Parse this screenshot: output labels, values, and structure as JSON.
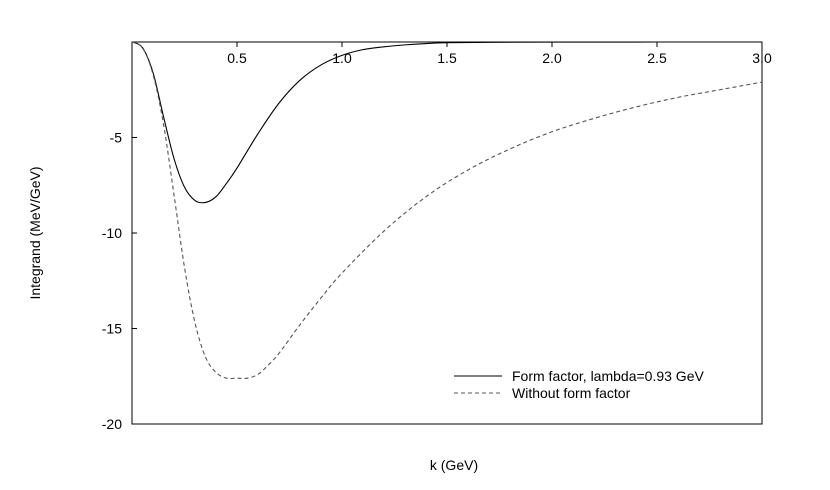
{
  "chart_data": {
    "type": "line",
    "xlabel": "k (GeV)",
    "ylabel": "Integrand (MeV/GeV)",
    "xlim": [
      0,
      3.0
    ],
    "ylim": [
      -20,
      0
    ],
    "x_ticks": [
      {
        "value": 0.5,
        "label": "0.5"
      },
      {
        "value": 1.0,
        "label": "1.0"
      },
      {
        "value": 1.5,
        "label": "1.5"
      },
      {
        "value": 2.0,
        "label": "2.0"
      },
      {
        "value": 2.5,
        "label": "2.5"
      },
      {
        "value": 3.0,
        "label": "3.0"
      }
    ],
    "y_ticks": [
      {
        "value": -5,
        "label": "-5"
      },
      {
        "value": -10,
        "label": "-10"
      },
      {
        "value": -15,
        "label": "-15"
      },
      {
        "value": -20,
        "label": "-20"
      }
    ],
    "x_axis_position": "top",
    "grid": false,
    "legend_position": "bottom-right",
    "series": [
      {
        "name": "Form factor, lambda=0.93 GeV",
        "style": "solid",
        "color": "#000000",
        "x": [
          0.0,
          0.05,
          0.1,
          0.15,
          0.2,
          0.25,
          0.3,
          0.35,
          0.4,
          0.45,
          0.5,
          0.6,
          0.7,
          0.8,
          0.9,
          1.0,
          1.1,
          1.2,
          1.3,
          1.4,
          1.5,
          1.7,
          2.0,
          2.5,
          3.0
        ],
        "y": [
          0.0,
          -0.3,
          -1.6,
          -3.9,
          -6.1,
          -7.6,
          -8.3,
          -8.4,
          -8.1,
          -7.4,
          -6.6,
          -4.8,
          -3.2,
          -2.0,
          -1.2,
          -0.7,
          -0.4,
          -0.25,
          -0.15,
          -0.08,
          -0.04,
          -0.015,
          -0.005,
          0.0,
          0.0
        ]
      },
      {
        "name": "Without form factor",
        "style": "dashed",
        "color": "#555555",
        "x": [
          0.0,
          0.05,
          0.1,
          0.15,
          0.2,
          0.25,
          0.3,
          0.35,
          0.4,
          0.45,
          0.5,
          0.55,
          0.6,
          0.65,
          0.7,
          0.8,
          0.9,
          1.0,
          1.2,
          1.4,
          1.6,
          1.8,
          2.0,
          2.2,
          2.4,
          2.6,
          2.8,
          3.0
        ],
        "y": [
          0.0,
          -0.3,
          -1.7,
          -4.3,
          -8.0,
          -11.8,
          -14.7,
          -16.5,
          -17.3,
          -17.6,
          -17.6,
          -17.6,
          -17.4,
          -16.9,
          -16.3,
          -14.8,
          -13.4,
          -12.1,
          -9.9,
          -8.1,
          -6.7,
          -5.6,
          -4.7,
          -4.0,
          -3.4,
          -2.9,
          -2.5,
          -2.1
        ]
      }
    ]
  }
}
